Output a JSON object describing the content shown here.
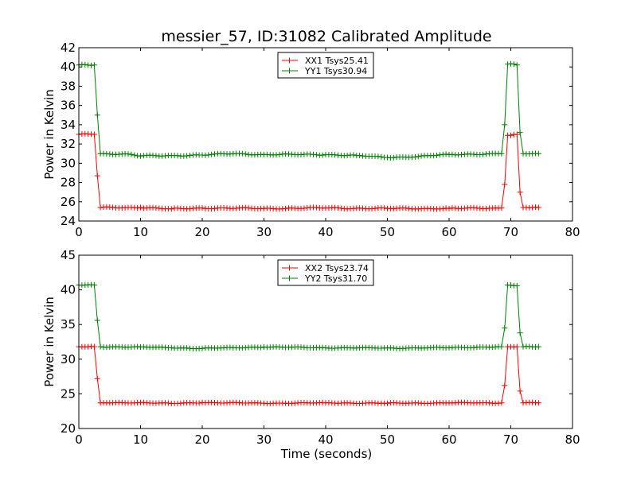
{
  "chart_data": [
    {
      "type": "line",
      "title": "messier_57, ID:31082 Calibrated Amplitude",
      "xlabel": "",
      "ylabel": "Power in Kelvin",
      "xlim": [
        0,
        80
      ],
      "ylim": [
        24,
        42
      ],
      "xticks": [
        0,
        10,
        20,
        30,
        40,
        50,
        60,
        70,
        80
      ],
      "yticks": [
        24,
        26,
        28,
        30,
        32,
        34,
        36,
        38,
        40,
        42
      ],
      "grid": false,
      "legend_placement": "top-center",
      "x_range": [
        0,
        74.5
      ],
      "x_step": 0.5,
      "series": [
        {
          "name": "XX1 Tsys25.41",
          "color": "#ff0000",
          "marker": "+",
          "profile": [
            [
              0,
              33.0
            ],
            [
              2.5,
              33.0
            ],
            [
              3.0,
              28.7
            ],
            [
              3.5,
              25.4
            ],
            [
              10,
              25.4
            ],
            [
              15,
              25.25
            ],
            [
              20,
              25.35
            ],
            [
              30,
              25.3
            ],
            [
              40,
              25.35
            ],
            [
              50,
              25.3
            ],
            [
              60,
              25.3
            ],
            [
              68.5,
              25.35
            ],
            [
              69.0,
              27.8
            ],
            [
              69.5,
              32.9
            ],
            [
              71.0,
              33.0
            ],
            [
              71.5,
              27.0
            ],
            [
              72.0,
              25.4
            ],
            [
              74.5,
              25.4
            ]
          ]
        },
        {
          "name": "YY1 Tsys30.94",
          "color": "#008000",
          "marker": "+",
          "profile": [
            [
              0,
              40.2
            ],
            [
              2.5,
              40.2
            ],
            [
              3.0,
              35.0
            ],
            [
              3.5,
              31.0
            ],
            [
              8,
              30.95
            ],
            [
              10,
              30.75
            ],
            [
              15,
              30.8
            ],
            [
              20,
              30.85
            ],
            [
              25,
              31.0
            ],
            [
              30,
              30.9
            ],
            [
              40,
              30.9
            ],
            [
              45,
              30.8
            ],
            [
              50,
              30.6
            ],
            [
              55,
              30.7
            ],
            [
              60,
              30.9
            ],
            [
              68.5,
              31.0
            ],
            [
              69.0,
              34.0
            ],
            [
              69.5,
              40.3
            ],
            [
              71.0,
              40.2
            ],
            [
              71.5,
              33.2
            ],
            [
              72.0,
              31.0
            ],
            [
              74.5,
              31.0
            ]
          ]
        }
      ]
    },
    {
      "type": "line",
      "title": "",
      "xlabel": "Time (seconds)",
      "ylabel": "Power in Kelvin",
      "xlim": [
        0,
        80
      ],
      "ylim": [
        20,
        45
      ],
      "xticks": [
        0,
        10,
        20,
        30,
        40,
        50,
        60,
        70,
        80
      ],
      "yticks": [
        20,
        25,
        30,
        35,
        40,
        45
      ],
      "grid": false,
      "legend_placement": "top-center",
      "x_range": [
        0,
        74.5
      ],
      "x_step": 0.5,
      "series": [
        {
          "name": "XX2 Tsys23.74",
          "color": "#ff0000",
          "marker": "+",
          "profile": [
            [
              0,
              31.8
            ],
            [
              2.5,
              31.8
            ],
            [
              3.0,
              27.2
            ],
            [
              3.5,
              23.7
            ],
            [
              10,
              23.75
            ],
            [
              15,
              23.6
            ],
            [
              20,
              23.75
            ],
            [
              30,
              23.65
            ],
            [
              40,
              23.7
            ],
            [
              50,
              23.65
            ],
            [
              60,
              23.7
            ],
            [
              68.5,
              23.7
            ],
            [
              69.0,
              26.2
            ],
            [
              69.5,
              31.8
            ],
            [
              71.0,
              31.8
            ],
            [
              71.5,
              25.4
            ],
            [
              72.0,
              23.7
            ],
            [
              74.5,
              23.7
            ]
          ]
        },
        {
          "name": "YY2 Tsys31.70",
          "color": "#008000",
          "marker": "+",
          "profile": [
            [
              0,
              40.7
            ],
            [
              2.5,
              40.7
            ],
            [
              3.0,
              35.6
            ],
            [
              3.5,
              31.8
            ],
            [
              10,
              31.75
            ],
            [
              15,
              31.65
            ],
            [
              20,
              31.55
            ],
            [
              25,
              31.65
            ],
            [
              30,
              31.75
            ],
            [
              40,
              31.65
            ],
            [
              50,
              31.6
            ],
            [
              60,
              31.65
            ],
            [
              68.5,
              31.8
            ],
            [
              69.0,
              34.5
            ],
            [
              69.5,
              40.7
            ],
            [
              71.0,
              40.6
            ],
            [
              71.5,
              33.8
            ],
            [
              72.0,
              31.8
            ],
            [
              74.5,
              31.8
            ]
          ]
        }
      ]
    }
  ]
}
